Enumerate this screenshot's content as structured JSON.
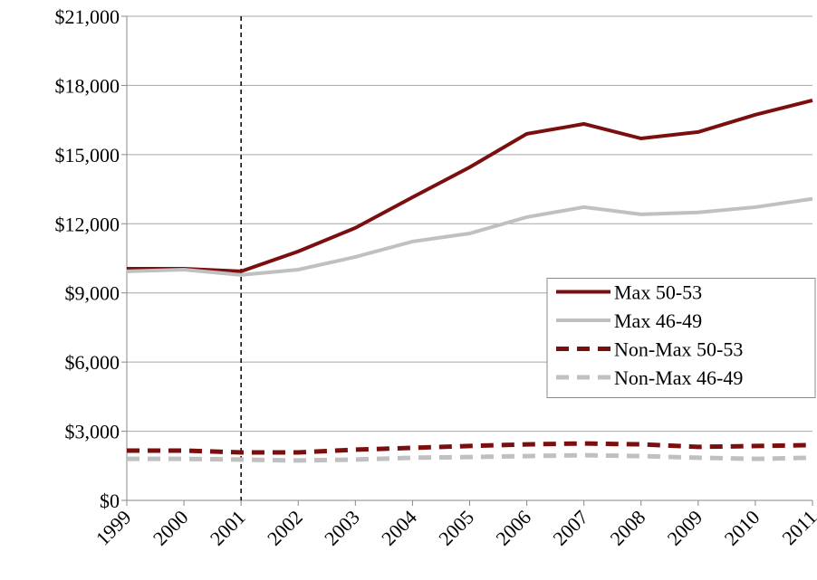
{
  "chart_data": {
    "type": "line",
    "categories": [
      "1999",
      "2000",
      "2001",
      "2002",
      "2003",
      "2004",
      "2005",
      "2006",
      "2007",
      "2008",
      "2009",
      "2010",
      "2011"
    ],
    "series": [
      {
        "name": "Max 50-53",
        "color": "#7b0f0f",
        "dash": false,
        "values": [
          10050,
          10050,
          9935,
          10800,
          11820,
          13150,
          14450,
          15900,
          16330,
          15700,
          15980,
          16730,
          17350
        ]
      },
      {
        "name": "Max 46-49",
        "color": "#c0c0c0",
        "dash": false,
        "values": [
          9935,
          10010,
          9780,
          10010,
          10560,
          11230,
          11580,
          12290,
          12720,
          12410,
          12490,
          12720,
          13080
        ]
      },
      {
        "name": "Non-Max 50-53",
        "color": "#7b0f0f",
        "dash": true,
        "values": [
          2160,
          2160,
          2080,
          2080,
          2200,
          2280,
          2360,
          2430,
          2470,
          2430,
          2320,
          2360,
          2400
        ]
      },
      {
        "name": "Non-Max 46-49",
        "color": "#c0c0c0",
        "dash": true,
        "values": [
          1800,
          1800,
          1770,
          1730,
          1770,
          1850,
          1880,
          1920,
          1960,
          1920,
          1850,
          1800,
          1850
        ]
      }
    ],
    "ylim": [
      0,
      21000
    ],
    "yticks": [
      {
        "value": 0,
        "label": "$0"
      },
      {
        "value": 3000,
        "label": "$3,000"
      },
      {
        "value": 6000,
        "label": "$6,000"
      },
      {
        "value": 9000,
        "label": "$9,000"
      },
      {
        "value": 12000,
        "label": "$12,000"
      },
      {
        "value": 15000,
        "label": "$15,000"
      },
      {
        "value": 18000,
        "label": "$18,000"
      },
      {
        "value": 21000,
        "label": "$21,000"
      }
    ],
    "grid": true,
    "vline_at": "2001",
    "legend": "center right"
  }
}
